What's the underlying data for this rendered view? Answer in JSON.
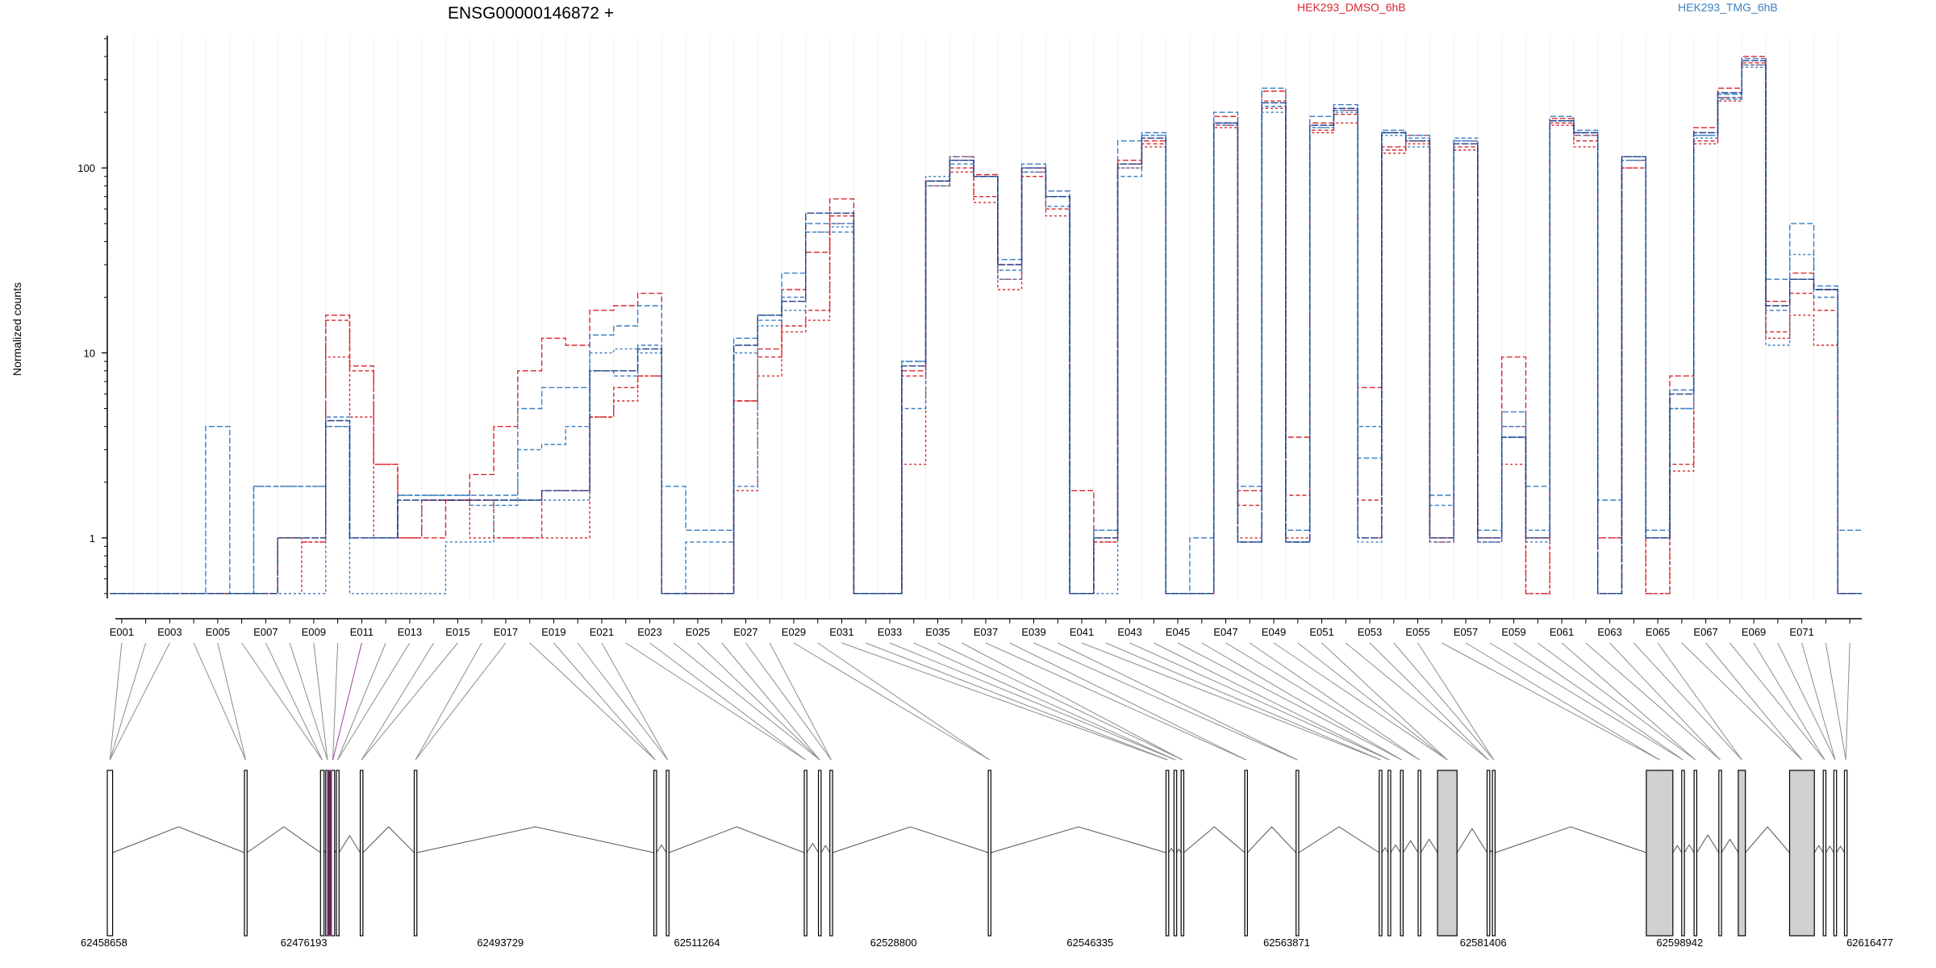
{
  "chart_data": {
    "type": "line",
    "title": "ENSG00000146872 +",
    "ylabel": "Normalized counts",
    "xlabel": "",
    "y_scale": "log",
    "ylim": [
      0.47,
      520
    ],
    "y_ticks": [
      {
        "value": 1,
        "label": "1"
      },
      {
        "value": 10,
        "label": "10"
      },
      {
        "value": 100,
        "label": "100"
      }
    ],
    "legend": [
      {
        "name": "HEK293_DMSO_6hB",
        "color": "#d9262b"
      },
      {
        "name": "HEK293_TMG_6hB",
        "color": "#3a7ec0"
      }
    ],
    "legend_placement": "top",
    "grid": false,
    "exon_count": 73,
    "exon_tick_labels": [
      "E001",
      "E003",
      "E005",
      "E007",
      "E009",
      "E011",
      "E013",
      "E015",
      "E017",
      "E019",
      "E021",
      "E023",
      "E025",
      "E027",
      "E029",
      "E031",
      "E033",
      "E035",
      "E037",
      "E039",
      "E041",
      "E043",
      "E045",
      "E047",
      "E049",
      "E051",
      "E053",
      "E055",
      "E057",
      "E059",
      "E061",
      "E063",
      "E065",
      "E067",
      "E069",
      "E071"
    ],
    "series": [
      {
        "name": "HEK293_DMSO_6hB",
        "group": "DMSO",
        "color": "#d9262b",
        "values": [
          0.5,
          0.5,
          0.5,
          0.5,
          0.5,
          0.5,
          0.5,
          1,
          1,
          16,
          8.5,
          2.5,
          1,
          1,
          1.6,
          2.2,
          4,
          8,
          12,
          11,
          17,
          18,
          21,
          0.5,
          0.5,
          0.5,
          5.5,
          10.5,
          22,
          35,
          68,
          0.5,
          0.5,
          8,
          85,
          115,
          92,
          30,
          100,
          75,
          1.8,
          1,
          110,
          140,
          0.5,
          0.5,
          190,
          1.8,
          260,
          3.5,
          175,
          205,
          6.5,
          130,
          150,
          1,
          140,
          1,
          9.5,
          1,
          185,
          150,
          1,
          110,
          1,
          7.5,
          165,
          270,
          400,
          19,
          27,
          22,
          0.5
        ]
      },
      {
        "name": "HEK293_DMSO_6hB",
        "group": "DMSO",
        "color": "#d9262b",
        "values": [
          0.5,
          0.5,
          0.5,
          0.5,
          0.5,
          0.5,
          0.5,
          1,
          0.95,
          15,
          8,
          2.5,
          1,
          1.6,
          1.6,
          1.6,
          1,
          1,
          1.8,
          1.8,
          4.5,
          6.5,
          7.5,
          0.5,
          0.5,
          0.5,
          5.5,
          9.5,
          14,
          17,
          55,
          0.5,
          0.5,
          7.5,
          80,
          100,
          70,
          25,
          90,
          60,
          0.5,
          0.95,
          105,
          135,
          0.5,
          0.5,
          170,
          1.5,
          230,
          1.7,
          160,
          195,
          1.6,
          125,
          140,
          0.95,
          130,
          0.95,
          4,
          0.5,
          175,
          140,
          0.5,
          100,
          0.5,
          2.5,
          140,
          240,
          370,
          13,
          21,
          17,
          0.5
        ]
      },
      {
        "name": "HEK293_DMSO_6hB",
        "group": "DMSO",
        "color": "#d9262b",
        "values": [
          0.5,
          0.5,
          0.5,
          0.5,
          0.5,
          0.5,
          0.5,
          0.5,
          0.95,
          9.5,
          4.5,
          1,
          1,
          1.6,
          1.6,
          1,
          1,
          1,
          1,
          1,
          4.5,
          5.5,
          7.5,
          0.5,
          0.5,
          0.5,
          1.8,
          7.5,
          13,
          15,
          50,
          0.5,
          0.5,
          2.5,
          85,
          95,
          65,
          22,
          95,
          55,
          0.5,
          0.95,
          100,
          130,
          0.5,
          0.5,
          165,
          1,
          210,
          1,
          155,
          175,
          1,
          120,
          135,
          1,
          125,
          1,
          2.5,
          0.5,
          170,
          130,
          1,
          100,
          0.5,
          2.3,
          135,
          230,
          360,
          12,
          16,
          11,
          0.5
        ]
      },
      {
        "name": "HEK293_TMG_6hB",
        "group": "TMG",
        "color": "#3a7ec0",
        "values": [
          0.5,
          0.5,
          0.5,
          0.5,
          4,
          0.5,
          1.9,
          1.9,
          1.9,
          4,
          1,
          1,
          1.7,
          1.7,
          1.7,
          1.7,
          1.7,
          5,
          6.5,
          6.5,
          12.5,
          14,
          18,
          1.9,
          1.1,
          1.1,
          12,
          16,
          27,
          50,
          50,
          0.5,
          0.5,
          9,
          85,
          110,
          90,
          32,
          105,
          75,
          0.5,
          1.1,
          140,
          155,
          0.5,
          1,
          200,
          1.9,
          270,
          1.1,
          190,
          220,
          2.7,
          160,
          150,
          1.7,
          140,
          1.1,
          4.8,
          1.9,
          190,
          160,
          1.6,
          115,
          1.1,
          6.3,
          150,
          250,
          390,
          25,
          50,
          23,
          1.1
        ]
      },
      {
        "name": "HEK293_TMG_6hB",
        "group": "TMG",
        "color": "#3a7ec0",
        "values": [
          0.5,
          0.5,
          0.5,
          0.5,
          0.5,
          0.5,
          1.9,
          1.9,
          1.9,
          4.5,
          1,
          1,
          1.7,
          1.7,
          1.7,
          1.5,
          1.5,
          3,
          3.2,
          4,
          8,
          7.5,
          11,
          0.5,
          0.95,
          0.95,
          1.9,
          15,
          20,
          45,
          45,
          0.5,
          0.5,
          5,
          80,
          105,
          90,
          28,
          95,
          62,
          0.5,
          1.1,
          90,
          150,
          0.5,
          0.5,
          175,
          0.95,
          215,
          0.95,
          165,
          205,
          4,
          155,
          145,
          1.5,
          145,
          0.95,
          4,
          1.1,
          180,
          155,
          0.5,
          110,
          1,
          5,
          150,
          235,
          360,
          17,
          25,
          20,
          0.5
        ]
      },
      {
        "name": "HEK293_TMG_6hB",
        "group": "TMG",
        "color": "#3a7ec0",
        "values": [
          0.5,
          0.5,
          0.5,
          0.5,
          0.5,
          0.5,
          0.5,
          0.5,
          0.5,
          4,
          0.5,
          0.5,
          0.5,
          0.5,
          0.95,
          0.95,
          1.6,
          1.6,
          1.6,
          1.6,
          10,
          10.5,
          10,
          0.5,
          0.5,
          0.5,
          10,
          14,
          17,
          45,
          48,
          0.5,
          0.5,
          9,
          90,
          115,
          90,
          25,
          100,
          70,
          0.5,
          0.5,
          100,
          150,
          0.5,
          0.5,
          170,
          0.95,
          200,
          0.95,
          165,
          200,
          0.95,
          150,
          130,
          0.95,
          140,
          0.95,
          3.5,
          0.95,
          180,
          150,
          0.5,
          110,
          1,
          5,
          145,
          240,
          350,
          11,
          34,
          22,
          0.5
        ]
      },
      {
        "name": "HEK293_TMG_6hB",
        "group": "TMG",
        "color": "#1f3e8a",
        "values": [
          0.5,
          0.5,
          0.5,
          0.5,
          0.5,
          0.5,
          0.5,
          1,
          1,
          4.3,
          1,
          1,
          1.6,
          1.6,
          1.6,
          1.6,
          1.6,
          1.6,
          1.8,
          1.8,
          8,
          8,
          10.5,
          0.5,
          0.5,
          0.5,
          11,
          16,
          19,
          57,
          57,
          0.5,
          0.5,
          8.5,
          85,
          110,
          90,
          30,
          100,
          70,
          0.5,
          1,
          105,
          145,
          0.5,
          0.5,
          175,
          0.95,
          225,
          0.95,
          170,
          210,
          1,
          155,
          140,
          1,
          135,
          1,
          3.5,
          1,
          180,
          155,
          0.5,
          115,
          1,
          6,
          155,
          255,
          380,
          18,
          25,
          22,
          0.5
        ]
      }
    ]
  },
  "gene_model": {
    "coordinate_labels": [
      "62458658",
      "62476193",
      "62493729",
      "62511264",
      "62528800",
      "62546335",
      "62563871",
      "62581406",
      "62598942",
      "62616477"
    ],
    "range": [
      62458658,
      62616477
    ]
  }
}
